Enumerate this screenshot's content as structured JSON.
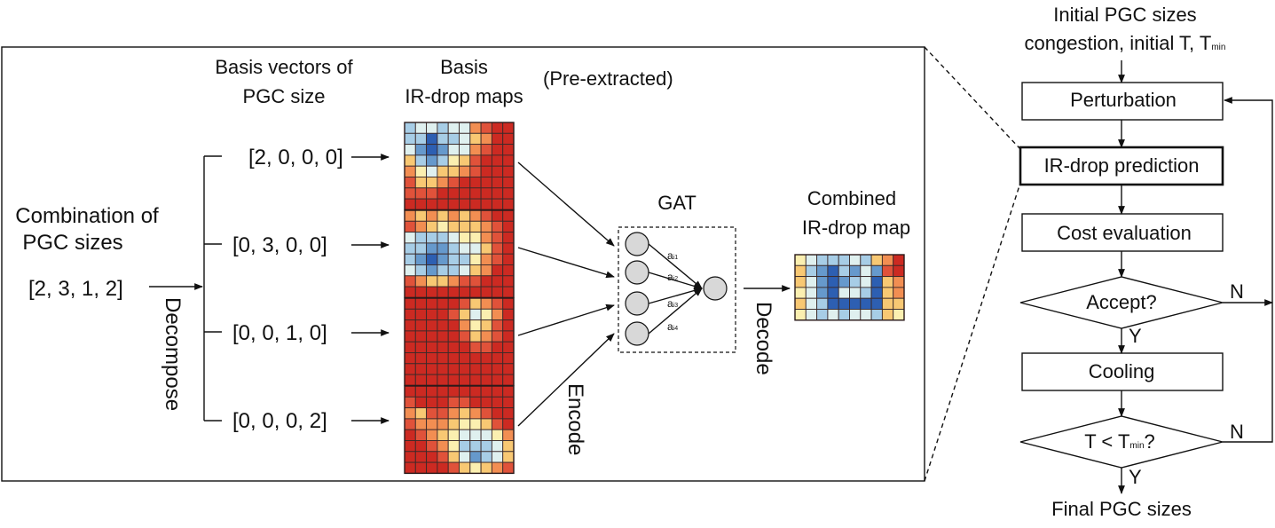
{
  "left_panel": {
    "input": {
      "title_line1": "Combination of",
      "title_line2": "PGC sizes",
      "vector": "[2, 3, 1, 2]"
    },
    "decompose_label": "Decompose",
    "basis_vectors_header_line1": "Basis vectors of",
    "basis_vectors_header_line2": "PGC size",
    "basis_maps_header_line1": "Basis",
    "basis_maps_header_line2": "IR-drop maps",
    "pre_extracted": "(Pre-extracted)",
    "basis_vectors": [
      "[2, 0, 0, 0]",
      "[0, 3, 0, 0]",
      "[0, 0, 1, 0]",
      "[0, 0, 0, 2]"
    ],
    "encode_label": "Encode",
    "gat": {
      "title": "GAT",
      "weights": [
        {
          "base": "a",
          "sub": "i1"
        },
        {
          "base": "a",
          "sub": "i2"
        },
        {
          "base": "a",
          "sub": "i3"
        },
        {
          "base": "a",
          "sub": "i4"
        }
      ]
    },
    "decode_label": "Decode",
    "combined_title_line1": "Combined",
    "combined_title_line2": "IR-drop map"
  },
  "flowchart": {
    "inputs_line1": "Initial PGC sizes",
    "inputs_line2_prefix": "congestion, initial T, T",
    "inputs_line2_sub": "min",
    "steps": {
      "perturbation": "Perturbation",
      "prediction": "IR-drop prediction",
      "cost": "Cost evaluation",
      "accept": "Accept?",
      "cooling": "Cooling",
      "check_prefix": "T < T",
      "check_sub": "min",
      "check_suffix": "?"
    },
    "yes": "Y",
    "no": "N",
    "output": "Final PGC sizes"
  },
  "colors": {
    "line": "#111111",
    "heat_scale": [
      "#cc2a22",
      "#e0523a",
      "#f28e52",
      "#f8c873",
      "#fbefb0",
      "#dff0ef",
      "#a7cde6",
      "#6699cc",
      "#2d5fb2"
    ]
  },
  "heatmaps": {
    "basis_1": [
      [
        6,
        5,
        5,
        6,
        5,
        5,
        2,
        1,
        0,
        0
      ],
      [
        6,
        6,
        8,
        6,
        6,
        5,
        3,
        2,
        0,
        0
      ],
      [
        5,
        7,
        8,
        7,
        5,
        5,
        2,
        1,
        0,
        0
      ],
      [
        3,
        6,
        7,
        6,
        4,
        3,
        1,
        0,
        0,
        0
      ],
      [
        2,
        4,
        5,
        3,
        3,
        2,
        1,
        0,
        0,
        0
      ],
      [
        1,
        3,
        3,
        2,
        1,
        0,
        0,
        0,
        0,
        0
      ],
      [
        1,
        1,
        1,
        0,
        0,
        0,
        0,
        0,
        0,
        0
      ],
      [
        0,
        0,
        0,
        0,
        0,
        0,
        0,
        0,
        0,
        0
      ]
    ],
    "basis_2": [
      [
        2,
        3,
        2,
        3,
        2,
        3,
        2,
        1,
        0,
        0
      ],
      [
        1,
        2,
        3,
        4,
        3,
        3,
        3,
        2,
        1,
        0
      ],
      [
        5,
        6,
        6,
        6,
        5,
        4,
        4,
        2,
        1,
        0
      ],
      [
        6,
        6,
        7,
        7,
        6,
        5,
        5,
        3,
        1,
        0
      ],
      [
        6,
        7,
        8,
        7,
        6,
        6,
        4,
        2,
        1,
        0
      ],
      [
        5,
        6,
        7,
        6,
        6,
        5,
        3,
        2,
        0,
        0
      ],
      [
        1,
        2,
        3,
        3,
        2,
        1,
        1,
        0,
        0,
        0
      ],
      [
        0,
        0,
        0,
        0,
        0,
        0,
        0,
        0,
        0,
        0
      ]
    ],
    "basis_3": [
      [
        0,
        0,
        0,
        0,
        0,
        1,
        3,
        2,
        1,
        0
      ],
      [
        0,
        0,
        0,
        0,
        1,
        3,
        5,
        4,
        2,
        0
      ],
      [
        0,
        0,
        0,
        0,
        0,
        2,
        4,
        3,
        1,
        0
      ],
      [
        0,
        0,
        0,
        0,
        0,
        1,
        3,
        2,
        1,
        0
      ],
      [
        0,
        0,
        0,
        0,
        0,
        0,
        1,
        1,
        0,
        0
      ],
      [
        0,
        0,
        0,
        0,
        0,
        0,
        0,
        0,
        0,
        0
      ],
      [
        0,
        0,
        0,
        0,
        0,
        0,
        0,
        0,
        0,
        0
      ],
      [
        0,
        0,
        0,
        0,
        0,
        0,
        0,
        0,
        0,
        0
      ]
    ],
    "basis_4": [
      [
        0,
        0,
        0,
        0,
        0,
        0,
        0,
        0,
        0,
        0
      ],
      [
        1,
        0,
        0,
        0,
        1,
        1,
        0,
        0,
        0,
        0
      ],
      [
        2,
        3,
        1,
        1,
        2,
        3,
        2,
        1,
        0,
        0
      ],
      [
        1,
        2,
        2,
        2,
        3,
        4,
        4,
        3,
        1,
        0
      ],
      [
        0,
        1,
        2,
        3,
        4,
        5,
        5,
        5,
        4,
        2
      ],
      [
        0,
        0,
        1,
        2,
        4,
        6,
        6,
        6,
        5,
        3
      ],
      [
        0,
        0,
        0,
        1,
        3,
        5,
        7,
        6,
        5,
        3
      ],
      [
        0,
        0,
        0,
        0,
        1,
        3,
        4,
        3,
        2,
        1
      ]
    ],
    "combined": [
      [
        4,
        5,
        6,
        6,
        6,
        5,
        6,
        3,
        2,
        0
      ],
      [
        3,
        6,
        7,
        8,
        6,
        7,
        5,
        7,
        1,
        0
      ],
      [
        3,
        5,
        7,
        8,
        7,
        6,
        5,
        8,
        3,
        2
      ],
      [
        4,
        5,
        7,
        8,
        5,
        5,
        6,
        8,
        3,
        2
      ],
      [
        3,
        5,
        6,
        8,
        8,
        8,
        8,
        8,
        3,
        3
      ],
      [
        4,
        5,
        6,
        5,
        6,
        5,
        5,
        6,
        3,
        4
      ]
    ]
  }
}
